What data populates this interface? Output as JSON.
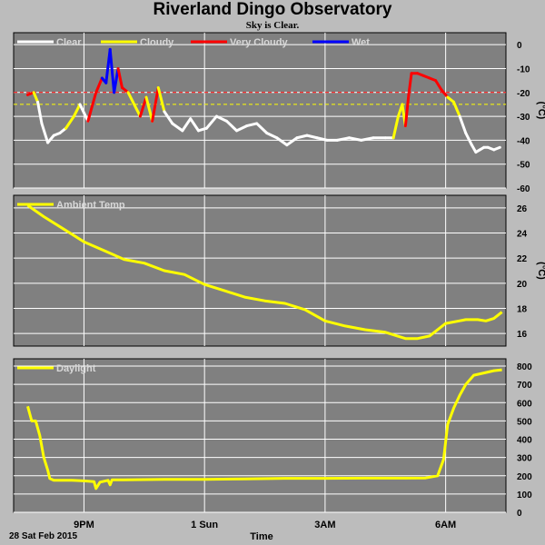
{
  "title": "Riverland Dingo Observatory",
  "subtitle": "Sky is Clear.",
  "footer": {
    "date_label": "28 Sat Feb 2015",
    "time_label": "Time"
  },
  "colors": {
    "background": "#bcbcbc",
    "panel": "#808080",
    "grid": "#ffffff",
    "clear": "#ffffff",
    "cloudy": "#ffff00",
    "very_cloudy": "#ff0000",
    "wet": "#0000ff"
  },
  "chart_data": [
    {
      "type": "line",
      "title": "",
      "ylabel": "(°C)",
      "ylim": [
        -60,
        5
      ],
      "yticks": [
        0,
        -10,
        -20,
        -30,
        -40,
        -50,
        -60
      ],
      "thresholds": [
        {
          "value": -20,
          "color": "#ff0000",
          "style": "dashed"
        },
        {
          "value": -25,
          "color": "#ffff00",
          "style": "dashed"
        }
      ],
      "legend": [
        {
          "label": "Clear",
          "color": "#ffffff"
        },
        {
          "label": "Cloudy",
          "color": "#ffff00"
        },
        {
          "label": "Very Cloudy",
          "color": "#ff0000"
        },
        {
          "label": "Wet",
          "color": "#0000ff"
        }
      ],
      "legend_position": "top-left",
      "x_hours": [
        19.6,
        19.75,
        19.85,
        19.95,
        20.1,
        20.25,
        20.4,
        20.55,
        20.75,
        20.9,
        21.1,
        21.3,
        21.45,
        21.55,
        21.65,
        21.75,
        21.85,
        21.95,
        22.1,
        22.25,
        22.4,
        22.55,
        22.7,
        22.85,
        23.0,
        23.2,
        23.45,
        23.65,
        23.85,
        24.05,
        24.3,
        24.55,
        24.8,
        25.05,
        25.3,
        25.55,
        25.8,
        26.05,
        26.3,
        26.55,
        26.8,
        27.05,
        27.3,
        27.6,
        27.9,
        28.2,
        28.5,
        28.7,
        28.82,
        28.92,
        29.0,
        29.08,
        29.15,
        29.3,
        29.45,
        29.6,
        29.75,
        29.9,
        30.05,
        30.2,
        30.35,
        30.5,
        30.65,
        30.75,
        30.85,
        30.95,
        31.05,
        31.2,
        31.35
      ],
      "values": [
        -21,
        -20,
        -24,
        -33,
        -41,
        -38,
        -37,
        -35,
        -30,
        -25,
        -32,
        -20,
        -14,
        -16,
        -2,
        -20,
        -10,
        -18,
        -20,
        -25,
        -30,
        -22,
        -32,
        -18,
        -28,
        -33,
        -36,
        -31,
        -36,
        -35,
        -30,
        -32,
        -36,
        -34,
        -33,
        -37,
        -39,
        -42,
        -39,
        -38,
        -39,
        -40,
        -40,
        -39,
        -40,
        -39,
        -39,
        -39,
        -30,
        -25,
        -34,
        -21,
        -12,
        -12,
        -13,
        -14,
        -15,
        -19,
        -22,
        -24,
        -30,
        -37,
        -42,
        -45,
        -44,
        -43,
        -43,
        -44,
        -43
      ],
      "conditions": [
        "very_cloudy",
        "very_cloudy",
        "cloudy",
        "clear",
        "clear",
        "clear",
        "clear",
        "clear",
        "cloudy",
        "cloudy",
        "clear",
        "very_cloudy",
        "very_cloudy",
        "wet",
        "wet",
        "wet",
        "wet",
        "very_cloudy",
        "very_cloudy",
        "cloudy",
        "cloudy",
        "very_cloudy",
        "cloudy",
        "very_cloudy",
        "cloudy",
        "clear",
        "clear",
        "clear",
        "clear",
        "clear",
        "clear",
        "clear",
        "clear",
        "clear",
        "clear",
        "clear",
        "clear",
        "clear",
        "clear",
        "clear",
        "clear",
        "clear",
        "clear",
        "clear",
        "clear",
        "clear",
        "clear",
        "clear",
        "cloudy",
        "cloudy",
        "cloudy",
        "very_cloudy",
        "very_cloudy",
        "very_cloudy",
        "very_cloudy",
        "very_cloudy",
        "very_cloudy",
        "very_cloudy",
        "very_cloudy",
        "cloudy",
        "cloudy",
        "clear",
        "clear",
        "clear",
        "clear",
        "clear",
        "clear",
        "clear",
        "clear"
      ]
    },
    {
      "type": "line",
      "title": "",
      "ylabel": "(°C)",
      "ylim": [
        15,
        27
      ],
      "yticks": [
        26,
        24,
        22,
        20,
        18,
        16
      ],
      "legend": [
        {
          "label": "Ambient Temp",
          "color": "#ffff00"
        }
      ],
      "legend_position": "top-left",
      "x_hours": [
        19.6,
        20.0,
        20.5,
        21.0,
        21.5,
        22.0,
        22.5,
        23.0,
        23.5,
        24.0,
        24.5,
        25.0,
        25.5,
        26.0,
        26.5,
        27.0,
        27.5,
        28.0,
        28.5,
        28.8,
        29.0,
        29.3,
        29.6,
        30.0,
        30.5,
        30.8,
        31.0,
        31.2,
        31.4
      ],
      "values": [
        26.2,
        25.3,
        24.3,
        23.3,
        22.6,
        21.9,
        21.6,
        21.0,
        20.7,
        19.9,
        19.4,
        18.9,
        18.6,
        18.4,
        17.9,
        17.0,
        16.6,
        16.3,
        16.1,
        15.8,
        15.6,
        15.6,
        15.8,
        16.8,
        17.1,
        17.1,
        17.0,
        17.2,
        17.7
      ],
      "line_color": "#ffff00"
    },
    {
      "type": "line",
      "title": "",
      "ylabel": "",
      "ylim": [
        0,
        840
      ],
      "yticks": [
        800,
        700,
        600,
        500,
        400,
        300,
        200,
        100,
        0
      ],
      "legend": [
        {
          "label": "Daylight",
          "color": "#ffff00"
        }
      ],
      "legend_position": "top-left",
      "x_hours": [
        19.6,
        19.7,
        19.8,
        19.9,
        20.0,
        20.1,
        20.15,
        20.25,
        20.4,
        20.7,
        21.0,
        21.25,
        21.3,
        21.4,
        21.6,
        21.65,
        21.7,
        22.0,
        23.0,
        24.0,
        25.0,
        26.0,
        27.0,
        28.0,
        29.0,
        29.5,
        29.8,
        29.95,
        30.05,
        30.2,
        30.35,
        30.5,
        30.7,
        31.0,
        31.2,
        31.4
      ],
      "values": [
        580,
        500,
        500,
        420,
        300,
        230,
        185,
        175,
        175,
        175,
        172,
        168,
        130,
        165,
        175,
        150,
        178,
        178,
        180,
        180,
        183,
        186,
        186,
        187,
        187,
        188,
        200,
        290,
        480,
        570,
        640,
        700,
        750,
        765,
        775,
        780
      ],
      "line_color": "#ffff00"
    }
  ],
  "x_axis": {
    "xlim": [
      19.25,
      31.5
    ],
    "major_ticks": [
      {
        "hour": 21,
        "label": "9PM"
      },
      {
        "hour": 24,
        "label": "1 Sun"
      },
      {
        "hour": 27,
        "label": "3AM"
      },
      {
        "hour": 30,
        "label": "6AM"
      }
    ],
    "xlabel": "Time"
  }
}
